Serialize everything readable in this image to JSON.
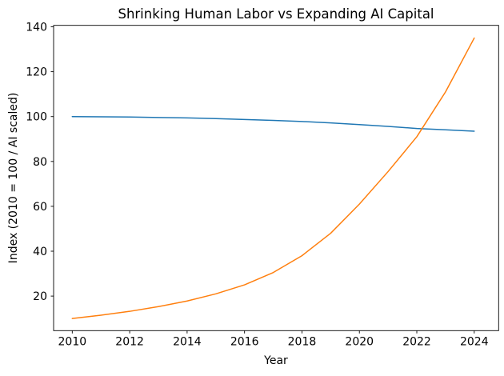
{
  "chart_data": {
    "type": "line",
    "title": "Shrinking Human Labor vs Expanding AI Capital",
    "xlabel": "Year",
    "ylabel": "Index (2010 = 100 / AI scaled)",
    "x": [
      2010,
      2011,
      2012,
      2013,
      2014,
      2015,
      2016,
      2017,
      2018,
      2019,
      2020,
      2021,
      2022,
      2023,
      2024
    ],
    "series": [
      {
        "name": "Human Labor",
        "color": "#1f77b4",
        "values": [
          100.0,
          99.9,
          99.8,
          99.6,
          99.4,
          99.1,
          98.7,
          98.3,
          97.8,
          97.2,
          96.4,
          95.6,
          94.7,
          94.1,
          93.5
        ]
      },
      {
        "name": "AI Capital",
        "color": "#ff7f0e",
        "values": [
          10.0,
          11.5,
          13.2,
          15.3,
          17.8,
          21.0,
          25.0,
          30.5,
          38.0,
          48.0,
          61.0,
          75.5,
          91.0,
          111.0,
          135.0
        ]
      }
    ],
    "xticks": [
      2010,
      2012,
      2014,
      2016,
      2018,
      2020,
      2022,
      2024
    ],
    "yticks": [
      20,
      40,
      60,
      80,
      100,
      120,
      140
    ],
    "xlim": [
      2009.35,
      2024.85
    ],
    "ylim": [
      4.6,
      140.65
    ],
    "grid": false,
    "legend": "none",
    "line_width": 1.5,
    "spine_color": "#000000"
  }
}
